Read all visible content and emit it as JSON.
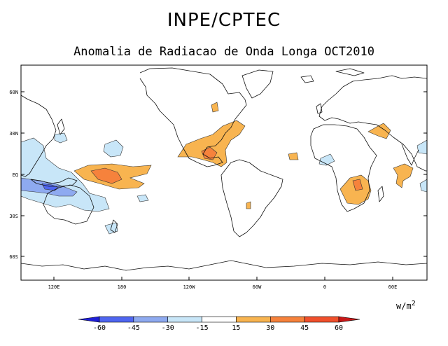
{
  "header": {
    "title": "INPE/CPTEC",
    "subtitle": "Anomalia de Radiacao de Onda Longa OCT2010"
  },
  "map": {
    "lat_labels": [
      "60N",
      "30N",
      "EQ",
      "30S",
      "60S"
    ],
    "lon_labels": [
      "120E",
      "180",
      "120W",
      "60W",
      "0",
      "60E"
    ]
  },
  "legend": {
    "units_base": "w/m",
    "units_exp": "2",
    "ticks": [
      "-60",
      "-45",
      "-30",
      "-15",
      "15",
      "30",
      "45",
      "60"
    ],
    "colors": [
      "#1f1fd6",
      "#4f66f0",
      "#8eaaf0",
      "#c8e6f8",
      "#ffffff",
      "#f8b450",
      "#f6823c",
      "#f0502c",
      "#c81818"
    ]
  }
}
